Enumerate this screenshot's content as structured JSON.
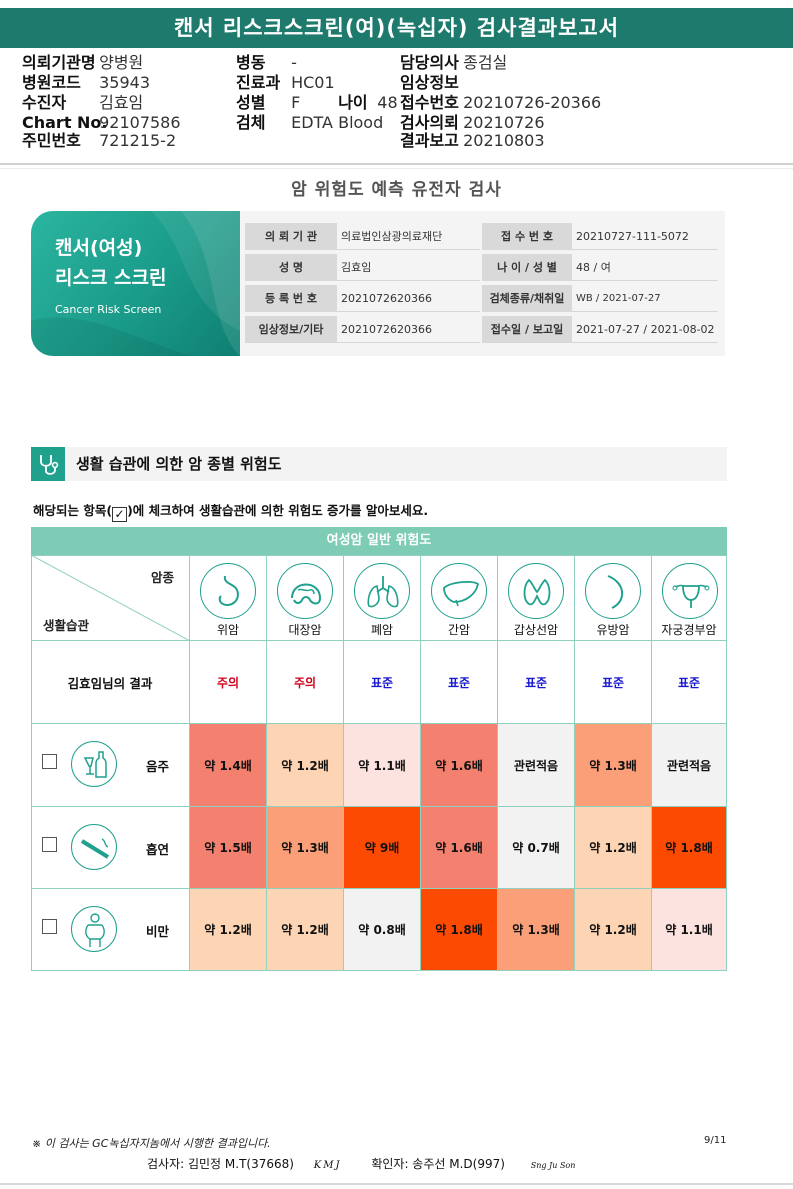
{
  "report_title": "캔서 리스크스크린(여)(녹십자) 검사결과보고서",
  "header": {
    "col1": [
      {
        "k": "의뢰기관명",
        "v": "양병원"
      },
      {
        "k": "병원코드",
        "v": "35943"
      },
      {
        "k": "수진자",
        "v": "김효임"
      },
      {
        "k": "Chart No.",
        "v": "92107586"
      },
      {
        "k": "주민번호",
        "v": "721215-2"
      }
    ],
    "col2": [
      {
        "k": "병동",
        "v": "-"
      },
      {
        "k": "진료과",
        "v": "HC01"
      },
      {
        "k": "성별",
        "v": "F"
      },
      {
        "k": "검체",
        "v": "EDTA Blood"
      }
    ],
    "age": {
      "k": "나이",
      "v": "48"
    },
    "col3": [
      {
        "k": "담당의사",
        "v": "종검실"
      },
      {
        "k": "임상정보",
        "v": ""
      },
      {
        "k": "접수번호",
        "v": "20210726-20366"
      },
      {
        "k": "검사의뢰",
        "v": "20210726"
      },
      {
        "k": "결과보고",
        "v": "20210803"
      }
    ]
  },
  "main_title": "암 위험도 예측 유전자 검사",
  "hero": {
    "line1": "캔서(여성)",
    "line2": "리스크 스크린",
    "line3": "Cancer Risk Screen"
  },
  "info": {
    "rows": [
      {
        "k1": "의 뢰 기 관",
        "v1": "의료법인삼광의료재단",
        "k2": "접 수 번 호",
        "v2": "20210727-111-5072"
      },
      {
        "k1": "성          명",
        "v1": "김효임",
        "k2": "나 이 / 성 별",
        "v2": "48 / 여"
      },
      {
        "k1": "등 록 번 호",
        "v1": "2021072620366",
        "k2": "검체종류/채취일",
        "v2": "WB / 2021-07-27"
      },
      {
        "k1": "임상정보/기타",
        "v1": "2021072620366",
        "k2": "접수일 / 보고일",
        "v2": "2021-07-27 / 2021-08-02"
      }
    ]
  },
  "section": {
    "title": "생활 습관에 의한 암 종별 위험도",
    "instruction_pre": "해당되는 항목(",
    "instruction_check": "✓",
    "instruction_post": ")에 체크하여 생활습관에 의한 위험도 증가를 알아보세요."
  },
  "table": {
    "header": "여성암 일반 위험도",
    "corner_top": "암종",
    "corner_bottom": "생활습관",
    "cancers": [
      {
        "name": "위암",
        "icon": "stomach-icon"
      },
      {
        "name": "대장암",
        "icon": "colon-icon"
      },
      {
        "name": "폐암",
        "icon": "lung-icon"
      },
      {
        "name": "간암",
        "icon": "liver-icon"
      },
      {
        "name": "갑상선암",
        "icon": "thyroid-icon"
      },
      {
        "name": "유방암",
        "icon": "breast-icon"
      },
      {
        "name": "자궁경부암",
        "icon": "uterus-icon"
      }
    ],
    "result_label": "김효임님의 결과",
    "results": [
      {
        "text": "주의",
        "color": "#d0021b"
      },
      {
        "text": "주의",
        "color": "#d0021b"
      },
      {
        "text": "표준",
        "color": "#1a1ad0"
      },
      {
        "text": "표준",
        "color": "#1a1ad0"
      },
      {
        "text": "표준",
        "color": "#1a1ad0"
      },
      {
        "text": "표준",
        "color": "#1a1ad0"
      },
      {
        "text": "표준",
        "color": "#1a1ad0"
      }
    ],
    "habits": [
      {
        "label": "음주",
        "icon": "alcohol-icon",
        "values": [
          {
            "text": "약 1.4배",
            "bg": "#f4816f"
          },
          {
            "text": "약 1.2배",
            "bg": "#fdd5b4"
          },
          {
            "text": "약 1.1배",
            "bg": "#fde3df"
          },
          {
            "text": "약 1.6배",
            "bg": "#f4816f"
          },
          {
            "text": "관련적음",
            "bg": "#f2f2f2"
          },
          {
            "text": "약 1.3배",
            "bg": "#fb9f78"
          },
          {
            "text": "관련적음",
            "bg": "#f2f2f2"
          }
        ]
      },
      {
        "label": "흡연",
        "icon": "smoking-icon",
        "values": [
          {
            "text": "약 1.5배",
            "bg": "#f4816f"
          },
          {
            "text": "약 1.3배",
            "bg": "#fb9f78"
          },
          {
            "text": "약 9배",
            "bg": "#fc4a02"
          },
          {
            "text": "약 1.6배",
            "bg": "#f4816f"
          },
          {
            "text": "약 0.7배",
            "bg": "#f2f2f2"
          },
          {
            "text": "약 1.2배",
            "bg": "#fdd5b4"
          },
          {
            "text": "약 1.8배",
            "bg": "#fc4a02"
          }
        ]
      },
      {
        "label": "비만",
        "icon": "obesity-icon",
        "values": [
          {
            "text": "약 1.2배",
            "bg": "#fdd5b4"
          },
          {
            "text": "약 1.2배",
            "bg": "#fdd5b4"
          },
          {
            "text": "약 0.8배",
            "bg": "#f2f2f2"
          },
          {
            "text": "약 1.8배",
            "bg": "#fc4a02"
          },
          {
            "text": "약 1.3배",
            "bg": "#fb9f78"
          },
          {
            "text": "약 1.2배",
            "bg": "#fdd5b4"
          },
          {
            "text": "약 1.1배",
            "bg": "#fde3df"
          }
        ]
      }
    ]
  },
  "footer": {
    "note": "※ 이 검사는 GC녹십자지놈에서 시행한 결과입니다.",
    "page": "9/11",
    "examiner": "검사자: 김민정 M.T(37668)",
    "examiner_sign": "KMJ",
    "confirmer": "확인자: 송주선 M.D(997)",
    "confirmer_sign": "Sng Ju Son"
  }
}
